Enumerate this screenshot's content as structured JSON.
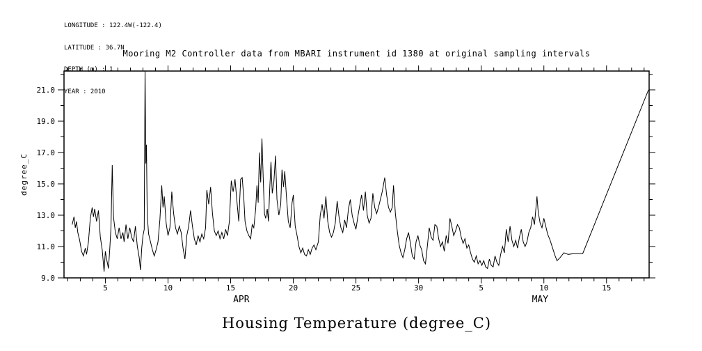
{
  "figure": {
    "metadata_lines": [
      "LONGITUDE : 122.4W(-122.4)",
      "LATITUDE : 36.7N",
      "DEPTH (m) : 1",
      "YEAR : 2010"
    ],
    "title": "Mooring M2 Controller data from MBARI instrument id 1380 at original sampling intervals",
    "footer_title": "Housing Temperature (degree_C)"
  },
  "chart_data": {
    "type": "line",
    "title": "Mooring M2 Controller data from MBARI instrument id 1380 at original sampling intervals",
    "ylabel": "degree_C",
    "x_encoding": "day index, April 1 2010 = 1 (May d = 30 + d)",
    "xlim": [
      1.7,
      48.4
    ],
    "ylim": [
      9.0,
      22.2
    ],
    "grid": false,
    "legend": "none",
    "colors": {
      "line": "#000000",
      "background": "#ffffff",
      "axis": "#000000"
    },
    "x_major_ticks": [
      {
        "day": 5,
        "label": "5"
      },
      {
        "day": 10,
        "label": "10"
      },
      {
        "day": 15,
        "label": "15"
      },
      {
        "day": 20,
        "label": "20"
      },
      {
        "day": 25,
        "label": "25"
      },
      {
        "day": 30,
        "label": "30"
      },
      {
        "day": 35,
        "label": "5"
      },
      {
        "day": 40,
        "label": "10"
      },
      {
        "day": 45,
        "label": "15"
      }
    ],
    "x_minor_step": 1,
    "month_labels": [
      {
        "label": "APR",
        "day": 15.85
      },
      {
        "label": "MAY",
        "day": 39.7
      }
    ],
    "y_major_ticks": [
      {
        "v": 9,
        "label": "9.0"
      },
      {
        "v": 11,
        "label": "11.0"
      },
      {
        "v": 13,
        "label": "13.0"
      },
      {
        "v": 15,
        "label": "15.0"
      },
      {
        "v": 17,
        "label": "17.0"
      },
      {
        "v": 19,
        "label": "19.0"
      },
      {
        "v": 21,
        "label": "21.0"
      }
    ],
    "y_minor_step": 1,
    "series": [
      {
        "name": "Housing Temperature",
        "unit": "degree_C",
        "points": [
          [
            2.35,
            12.4
          ],
          [
            2.5,
            12.9
          ],
          [
            2.6,
            12.2
          ],
          [
            2.7,
            12.6
          ],
          [
            2.8,
            11.9
          ],
          [
            2.95,
            11.4
          ],
          [
            3.1,
            10.7
          ],
          [
            3.25,
            10.4
          ],
          [
            3.4,
            10.9
          ],
          [
            3.5,
            10.5
          ],
          [
            3.65,
            11.3
          ],
          [
            3.8,
            12.8
          ],
          [
            3.95,
            13.5
          ],
          [
            4.05,
            12.9
          ],
          [
            4.15,
            13.4
          ],
          [
            4.3,
            12.6
          ],
          [
            4.45,
            13.3
          ],
          [
            4.6,
            11.6
          ],
          [
            4.75,
            10.8
          ],
          [
            4.9,
            9.4
          ],
          [
            5.0,
            10.7
          ],
          [
            5.1,
            10.2
          ],
          [
            5.25,
            9.6
          ],
          [
            5.35,
            10.8
          ],
          [
            5.45,
            12.2
          ],
          [
            5.55,
            16.2
          ],
          [
            5.65,
            12.9
          ],
          [
            5.8,
            11.9
          ],
          [
            5.95,
            11.5
          ],
          [
            6.1,
            12.2
          ],
          [
            6.25,
            11.5
          ],
          [
            6.4,
            11.9
          ],
          [
            6.5,
            11.3
          ],
          [
            6.65,
            12.4
          ],
          [
            6.8,
            11.5
          ],
          [
            6.95,
            12.2
          ],
          [
            7.1,
            11.6
          ],
          [
            7.25,
            11.3
          ],
          [
            7.4,
            12.3
          ],
          [
            7.55,
            11.0
          ],
          [
            7.7,
            10.3
          ],
          [
            7.8,
            9.5
          ],
          [
            7.9,
            10.9
          ],
          [
            8.0,
            11.7
          ],
          [
            8.1,
            12.1
          ],
          [
            8.17,
            22.2
          ],
          [
            8.23,
            16.3
          ],
          [
            8.28,
            17.5
          ],
          [
            8.34,
            13.0
          ],
          [
            8.45,
            11.8
          ],
          [
            8.6,
            11.3
          ],
          [
            8.75,
            10.8
          ],
          [
            8.9,
            10.4
          ],
          [
            9.05,
            10.8
          ],
          [
            9.2,
            11.3
          ],
          [
            9.35,
            12.7
          ],
          [
            9.5,
            14.9
          ],
          [
            9.6,
            13.5
          ],
          [
            9.7,
            14.2
          ],
          [
            9.85,
            12.5
          ],
          [
            10.0,
            11.7
          ],
          [
            10.15,
            12.2
          ],
          [
            10.3,
            14.5
          ],
          [
            10.45,
            13.1
          ],
          [
            10.6,
            12.2
          ],
          [
            10.75,
            11.8
          ],
          [
            10.9,
            12.3
          ],
          [
            11.05,
            11.9
          ],
          [
            11.2,
            10.9
          ],
          [
            11.35,
            10.2
          ],
          [
            11.5,
            11.7
          ],
          [
            11.65,
            12.3
          ],
          [
            11.8,
            13.3
          ],
          [
            11.95,
            12.3
          ],
          [
            12.1,
            11.5
          ],
          [
            12.25,
            11.1
          ],
          [
            12.4,
            11.7
          ],
          [
            12.55,
            11.3
          ],
          [
            12.7,
            11.8
          ],
          [
            12.85,
            11.5
          ],
          [
            13.0,
            12.2
          ],
          [
            13.1,
            14.6
          ],
          [
            13.25,
            13.7
          ],
          [
            13.4,
            14.8
          ],
          [
            13.55,
            13.1
          ],
          [
            13.7,
            12.0
          ],
          [
            13.85,
            11.7
          ],
          [
            14.0,
            12.0
          ],
          [
            14.15,
            11.5
          ],
          [
            14.3,
            11.9
          ],
          [
            14.45,
            11.5
          ],
          [
            14.6,
            12.1
          ],
          [
            14.75,
            11.7
          ],
          [
            14.9,
            12.6
          ],
          [
            15.05,
            15.2
          ],
          [
            15.2,
            14.5
          ],
          [
            15.35,
            15.3
          ],
          [
            15.5,
            13.9
          ],
          [
            15.65,
            12.6
          ],
          [
            15.8,
            15.3
          ],
          [
            15.92,
            15.4
          ],
          [
            16.05,
            14.1
          ],
          [
            16.15,
            12.6
          ],
          [
            16.3,
            12.0
          ],
          [
            16.45,
            11.7
          ],
          [
            16.6,
            11.5
          ],
          [
            16.72,
            12.4
          ],
          [
            16.85,
            12.2
          ],
          [
            17.0,
            13.4
          ],
          [
            17.1,
            14.9
          ],
          [
            17.2,
            13.8
          ],
          [
            17.3,
            17.0
          ],
          [
            17.4,
            15.1
          ],
          [
            17.5,
            17.9
          ],
          [
            17.6,
            15.4
          ],
          [
            17.7,
            13.1
          ],
          [
            17.8,
            12.8
          ],
          [
            17.92,
            13.4
          ],
          [
            18.02,
            12.6
          ],
          [
            18.12,
            14.7
          ],
          [
            18.22,
            16.4
          ],
          [
            18.32,
            14.4
          ],
          [
            18.45,
            15.1
          ],
          [
            18.58,
            16.8
          ],
          [
            18.7,
            14.0
          ],
          [
            18.85,
            13.0
          ],
          [
            19.0,
            13.7
          ],
          [
            19.1,
            15.9
          ],
          [
            19.22,
            14.8
          ],
          [
            19.32,
            15.8
          ],
          [
            19.45,
            14.2
          ],
          [
            19.6,
            12.6
          ],
          [
            19.75,
            12.2
          ],
          [
            19.9,
            13.8
          ],
          [
            20.0,
            14.3
          ],
          [
            20.15,
            12.3
          ],
          [
            20.3,
            11.7
          ],
          [
            20.45,
            11.0
          ],
          [
            20.6,
            10.6
          ],
          [
            20.75,
            10.9
          ],
          [
            20.9,
            10.5
          ],
          [
            21.05,
            10.4
          ],
          [
            21.2,
            10.8
          ],
          [
            21.35,
            10.5
          ],
          [
            21.5,
            10.9
          ],
          [
            21.65,
            11.1
          ],
          [
            21.8,
            10.8
          ],
          [
            22.0,
            11.3
          ],
          [
            22.15,
            13.0
          ],
          [
            22.3,
            13.7
          ],
          [
            22.45,
            12.8
          ],
          [
            22.6,
            14.2
          ],
          [
            22.75,
            12.6
          ],
          [
            22.9,
            11.9
          ],
          [
            23.05,
            11.6
          ],
          [
            23.2,
            11.9
          ],
          [
            23.35,
            12.5
          ],
          [
            23.5,
            13.9
          ],
          [
            23.65,
            12.9
          ],
          [
            23.8,
            12.2
          ],
          [
            23.95,
            11.9
          ],
          [
            24.1,
            12.7
          ],
          [
            24.25,
            12.2
          ],
          [
            24.4,
            13.4
          ],
          [
            24.55,
            14.0
          ],
          [
            24.7,
            13.0
          ],
          [
            24.85,
            12.5
          ],
          [
            25.0,
            12.1
          ],
          [
            25.15,
            12.9
          ],
          [
            25.3,
            13.6
          ],
          [
            25.45,
            14.3
          ],
          [
            25.6,
            13.3
          ],
          [
            25.75,
            14.5
          ],
          [
            25.9,
            13.0
          ],
          [
            26.05,
            12.5
          ],
          [
            26.2,
            12.8
          ],
          [
            26.35,
            14.4
          ],
          [
            26.5,
            13.5
          ],
          [
            26.65,
            13.1
          ],
          [
            26.8,
            13.5
          ],
          [
            26.95,
            14.0
          ],
          [
            27.1,
            14.5
          ],
          [
            27.3,
            15.4
          ],
          [
            27.45,
            14.3
          ],
          [
            27.6,
            13.5
          ],
          [
            27.75,
            13.2
          ],
          [
            27.9,
            13.5
          ],
          [
            28.0,
            14.9
          ],
          [
            28.15,
            13.1
          ],
          [
            28.3,
            12.0
          ],
          [
            28.45,
            11.1
          ],
          [
            28.6,
            10.6
          ],
          [
            28.75,
            10.3
          ],
          [
            28.9,
            10.8
          ],
          [
            29.05,
            11.5
          ],
          [
            29.2,
            11.9
          ],
          [
            29.35,
            11.2
          ],
          [
            29.5,
            10.4
          ],
          [
            29.65,
            10.2
          ],
          [
            29.8,
            11.3
          ],
          [
            29.95,
            11.7
          ],
          [
            30.1,
            11.1
          ],
          [
            30.25,
            10.8
          ],
          [
            30.4,
            10.1
          ],
          [
            30.55,
            9.9
          ],
          [
            30.7,
            11.0
          ],
          [
            30.85,
            12.2
          ],
          [
            31.0,
            11.6
          ],
          [
            31.15,
            11.4
          ],
          [
            31.3,
            12.4
          ],
          [
            31.45,
            12.3
          ],
          [
            31.6,
            11.5
          ],
          [
            31.75,
            11.0
          ],
          [
            31.9,
            11.3
          ],
          [
            32.05,
            10.7
          ],
          [
            32.2,
            11.7
          ],
          [
            32.35,
            11.2
          ],
          [
            32.5,
            12.8
          ],
          [
            32.65,
            12.3
          ],
          [
            32.8,
            11.7
          ],
          [
            32.95,
            12.0
          ],
          [
            33.1,
            12.4
          ],
          [
            33.25,
            12.2
          ],
          [
            33.4,
            11.6
          ],
          [
            33.55,
            11.2
          ],
          [
            33.7,
            11.5
          ],
          [
            33.85,
            10.9
          ],
          [
            34.0,
            11.1
          ],
          [
            34.15,
            10.6
          ],
          [
            34.3,
            10.2
          ],
          [
            34.45,
            10.0
          ],
          [
            34.6,
            10.4
          ],
          [
            34.75,
            9.9
          ],
          [
            34.9,
            10.1
          ],
          [
            35.05,
            9.8
          ],
          [
            35.2,
            10.1
          ],
          [
            35.35,
            9.7
          ],
          [
            35.5,
            9.6
          ],
          [
            35.65,
            10.2
          ],
          [
            35.8,
            9.8
          ],
          [
            35.95,
            9.7
          ],
          [
            36.1,
            10.4
          ],
          [
            36.25,
            10.0
          ],
          [
            36.4,
            9.8
          ],
          [
            36.55,
            10.5
          ],
          [
            36.7,
            11.0
          ],
          [
            36.85,
            10.6
          ],
          [
            37.0,
            12.1
          ],
          [
            37.15,
            11.3
          ],
          [
            37.3,
            12.3
          ],
          [
            37.45,
            11.4
          ],
          [
            37.6,
            11.0
          ],
          [
            37.75,
            11.4
          ],
          [
            37.9,
            10.9
          ],
          [
            38.05,
            11.6
          ],
          [
            38.2,
            12.1
          ],
          [
            38.35,
            11.3
          ],
          [
            38.5,
            11.0
          ],
          [
            38.65,
            11.3
          ],
          [
            38.8,
            11.9
          ],
          [
            38.95,
            12.2
          ],
          [
            39.1,
            12.9
          ],
          [
            39.25,
            12.4
          ],
          [
            39.45,
            14.2
          ],
          [
            39.55,
            13.2
          ],
          [
            39.7,
            12.5
          ],
          [
            39.85,
            12.2
          ],
          [
            40.0,
            12.8
          ],
          [
            40.15,
            12.3
          ],
          [
            40.3,
            11.8
          ],
          [
            40.5,
            11.4
          ],
          [
            40.7,
            10.9
          ],
          [
            40.9,
            10.4
          ],
          [
            41.05,
            10.1
          ],
          [
            41.3,
            10.3
          ],
          [
            41.6,
            10.6
          ],
          [
            41.95,
            10.5
          ],
          [
            42.4,
            10.55
          ],
          [
            43.1,
            10.55
          ],
          [
            48.35,
            21.0
          ]
        ]
      }
    ]
  }
}
